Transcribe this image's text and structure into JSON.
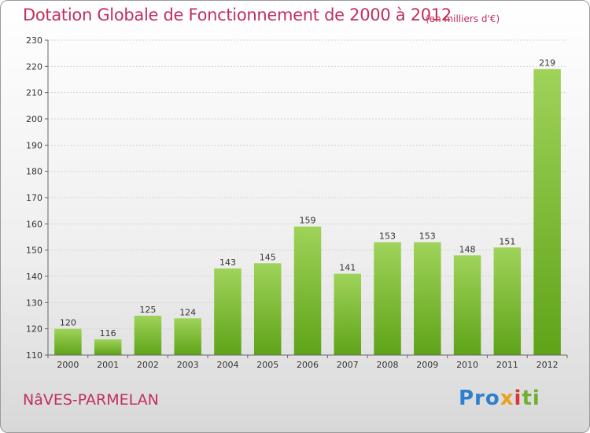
{
  "header": {
    "title": "Dotation Globale de Fonctionnement de 2000 à 2012",
    "subtitle": "(en milliers d'€)"
  },
  "footer": {
    "place": "NâVES-PARMELAN",
    "logo": [
      "Pro",
      "x",
      "i",
      "ti"
    ]
  },
  "colors": {
    "accent": "#c0305a",
    "bar_top": "#9fd35a",
    "bar_bottom": "#5fa318"
  },
  "chart_data": {
    "type": "bar",
    "title": "Dotation Globale de Fonctionnement de 2000 à 2012",
    "subtitle": "(en milliers d'€)",
    "xlabel": "",
    "ylabel": "",
    "categories": [
      "2000",
      "2001",
      "2002",
      "2003",
      "2004",
      "2005",
      "2006",
      "2007",
      "2008",
      "2009",
      "2010",
      "2011",
      "2012"
    ],
    "values": [
      120,
      116,
      125,
      124,
      143,
      145,
      159,
      141,
      153,
      153,
      148,
      151,
      219
    ],
    "ylim": [
      110,
      230
    ],
    "yticks": [
      110,
      120,
      130,
      140,
      150,
      160,
      170,
      180,
      190,
      200,
      210,
      220,
      230
    ],
    "grid": true,
    "legend": "none"
  }
}
